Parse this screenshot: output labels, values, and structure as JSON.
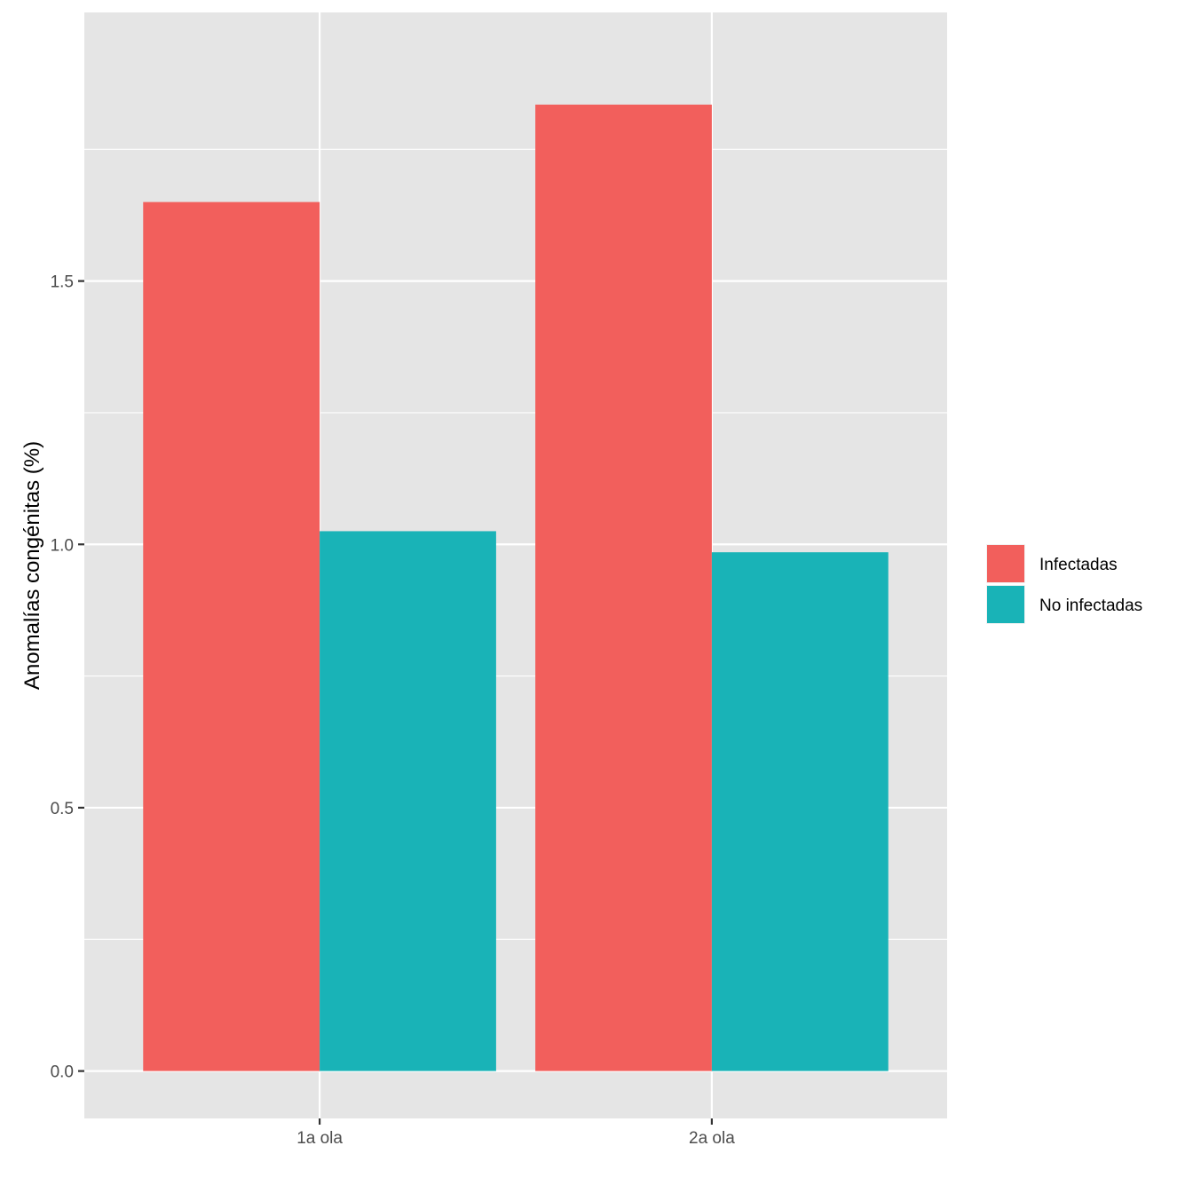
{
  "chart_data": {
    "type": "bar",
    "title": "",
    "xlabel": "",
    "ylabel": "Anomalías congénitas (%)",
    "categories": [
      "1a ola",
      "2a ola"
    ],
    "series": [
      {
        "name": "Infectadas",
        "color": "#F25F5C",
        "values": [
          1.65,
          1.835
        ]
      },
      {
        "name": "No infectadas",
        "color": "#19B3B7",
        "values": [
          1.025,
          0.985
        ]
      }
    ],
    "ylim": [
      -0.09,
      2.01
    ],
    "yticks": [
      0.0,
      0.5,
      1.0,
      1.5
    ],
    "ytick_labels": [
      "0.0",
      "0.5",
      "1.0",
      "1.5"
    ],
    "legend_position": "right",
    "grid": true,
    "panel_background": "#E5E5E5"
  }
}
